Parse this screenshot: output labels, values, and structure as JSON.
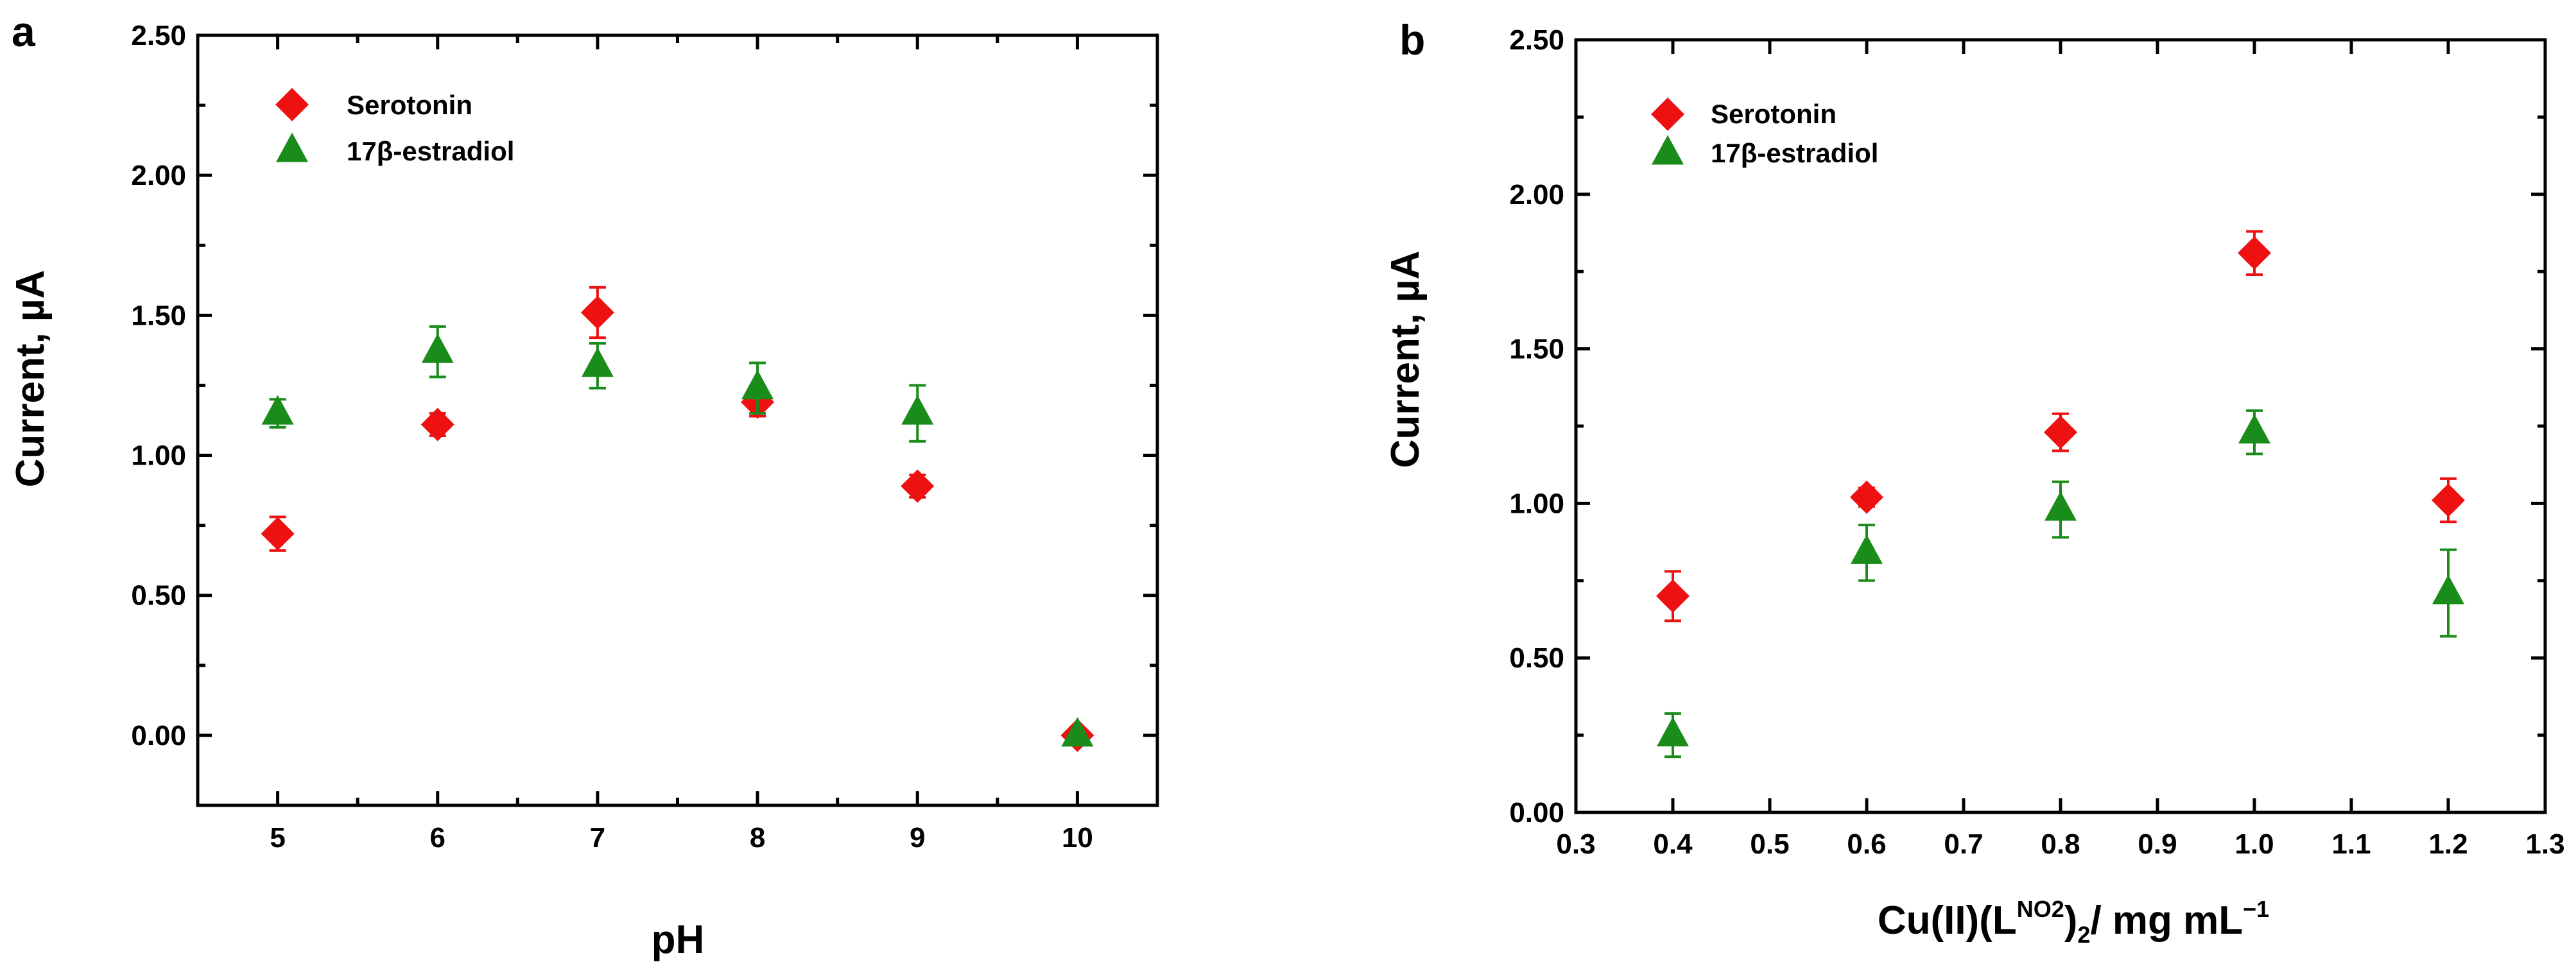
{
  "chart_data": [
    {
      "panel": "a",
      "type": "scatter",
      "xlabel": "pH",
      "ylabel": "Current, µA",
      "xlim": [
        4.5,
        10.5
      ],
      "ylim": [
        -0.25,
        2.5
      ],
      "xticks": [
        5,
        6,
        7,
        8,
        9,
        10
      ],
      "xtick_labels": [
        "5",
        "6",
        "7",
        "8",
        "9",
        "10"
      ],
      "yticks": [
        0,
        0.5,
        1.0,
        1.5,
        2.0,
        2.5
      ],
      "ytick_labels": [
        "0.00",
        "0.50",
        "1.00",
        "1.50",
        "2.00",
        "2.50"
      ],
      "legend_position": "top-left",
      "series": [
        {
          "name": "Serotonin",
          "marker": "diamond",
          "color": "#ee1111",
          "x": [
            5,
            6,
            7,
            8,
            9,
            10
          ],
          "y": [
            0.72,
            1.11,
            1.51,
            1.19,
            0.89,
            0.0
          ],
          "err": [
            0.06,
            0.04,
            0.09,
            0.05,
            0.04,
            0.02
          ]
        },
        {
          "name": "17β-estradiol",
          "marker": "triangle",
          "color": "#1a8c1a",
          "x": [
            5,
            6,
            7,
            8,
            9,
            10
          ],
          "y": [
            1.15,
            1.37,
            1.32,
            1.24,
            1.15,
            0.0
          ],
          "err": [
            0.05,
            0.09,
            0.08,
            0.09,
            0.1,
            0.01
          ]
        }
      ]
    },
    {
      "panel": "b",
      "type": "scatter",
      "xlabel": "Cu(II)(L",
      "xlabel_sup": "NO2",
      "xlabel_mid": ")",
      "xlabel_sub": "2",
      "xlabel_end": "/ mg mL",
      "xlabel_end_sup": "−1",
      "ylabel": "Current, µA",
      "xlim": [
        0.3,
        1.3
      ],
      "ylim": [
        0,
        2.5
      ],
      "xticks": [
        0.3,
        0.4,
        0.5,
        0.6,
        0.7,
        0.8,
        0.9,
        1.0,
        1.1,
        1.2,
        1.3
      ],
      "xtick_labels": [
        "0.3",
        "0.4",
        "0.5",
        "0.6",
        "0.7",
        "0.8",
        "0.9",
        "1.0",
        "1.1",
        "1.2",
        "1.3"
      ],
      "yticks": [
        0,
        0.5,
        1.0,
        1.5,
        2.0,
        2.5
      ],
      "ytick_labels": [
        "0.00",
        "0.50",
        "1.00",
        "1.50",
        "2.00",
        "2.50"
      ],
      "legend_position": "top-left",
      "series": [
        {
          "name": "Serotonin",
          "marker": "diamond",
          "color": "#ee1111",
          "x": [
            0.4,
            0.6,
            0.8,
            1.0,
            1.2
          ],
          "y": [
            0.7,
            1.02,
            1.23,
            1.81,
            1.01
          ],
          "err": [
            0.08,
            0.03,
            0.06,
            0.07,
            0.07
          ]
        },
        {
          "name": "17β-estradiol",
          "marker": "triangle",
          "color": "#1a8c1a",
          "x": [
            0.4,
            0.6,
            0.8,
            1.0,
            1.2
          ],
          "y": [
            0.25,
            0.84,
            0.98,
            1.23,
            0.71
          ],
          "err": [
            0.07,
            0.09,
            0.09,
            0.07,
            0.14
          ]
        }
      ]
    }
  ]
}
